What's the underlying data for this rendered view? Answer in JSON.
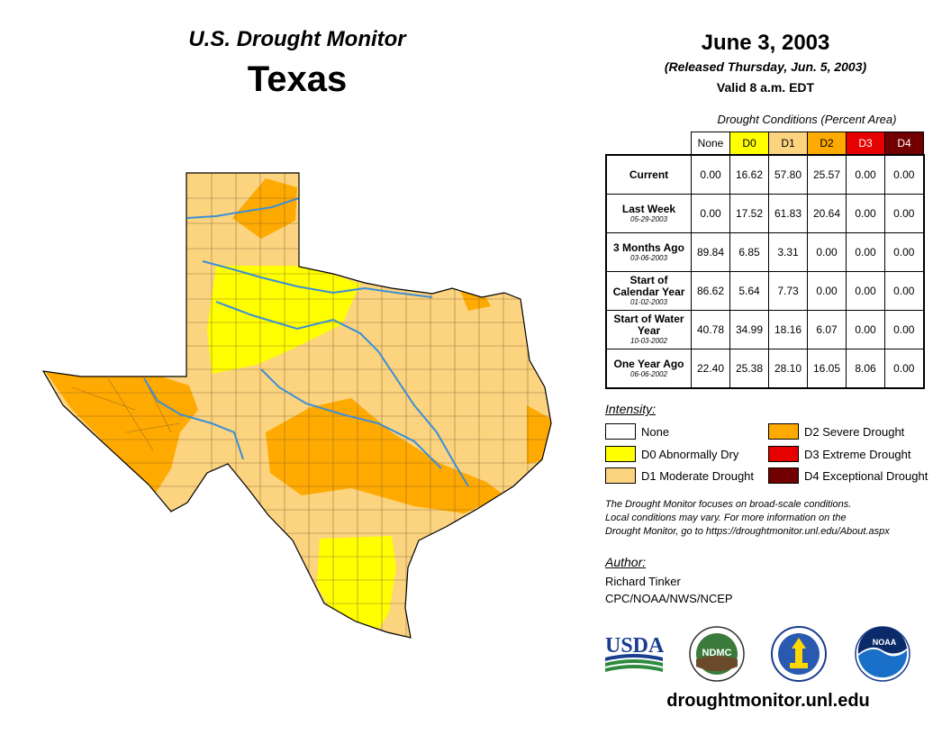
{
  "header": {
    "title": "U.S. Drought Monitor",
    "state": "Texas",
    "date": "June 3, 2003",
    "released": "(Released Thursday, Jun. 5, 2003)",
    "valid": "Valid 8 a.m. EDT"
  },
  "table": {
    "caption": "Drought Conditions (Percent Area)",
    "columns": [
      "None",
      "D0",
      "D1",
      "D2",
      "D3",
      "D4"
    ],
    "rows": [
      {
        "label": "Current",
        "date": "",
        "values": [
          "0.00",
          "16.62",
          "57.80",
          "25.57",
          "0.00",
          "0.00"
        ]
      },
      {
        "label": "Last Week",
        "date": "05-29-2003",
        "values": [
          "0.00",
          "17.52",
          "61.83",
          "20.64",
          "0.00",
          "0.00"
        ]
      },
      {
        "label": "3 Months Ago",
        "date": "03-06-2003",
        "values": [
          "89.84",
          "6.85",
          "3.31",
          "0.00",
          "0.00",
          "0.00"
        ]
      },
      {
        "label": "Start of Calendar Year",
        "date": "01-02-2003",
        "values": [
          "86.62",
          "5.64",
          "7.73",
          "0.00",
          "0.00",
          "0.00"
        ]
      },
      {
        "label": "Start of Water Year",
        "date": "10-03-2002",
        "values": [
          "40.78",
          "34.99",
          "18.16",
          "6.07",
          "0.00",
          "0.00"
        ]
      },
      {
        "label": "One Year Ago",
        "date": "06-06-2002",
        "values": [
          "22.40",
          "25.38",
          "28.10",
          "16.05",
          "8.06",
          "0.00"
        ]
      }
    ]
  },
  "legend": {
    "title": "Intensity:",
    "items": [
      {
        "label": "None",
        "color": "#ffffff"
      },
      {
        "label": "D0 Abnormally Dry",
        "color": "#ffff00"
      },
      {
        "label": "D1 Moderate Drought",
        "color": "#fcd37f"
      },
      {
        "label": "D2 Severe Drought",
        "color": "#ffaa00"
      },
      {
        "label": "D3 Extreme Drought",
        "color": "#e60000"
      },
      {
        "label": "D4 Exceptional Drought",
        "color": "#730000"
      }
    ]
  },
  "note": {
    "line1": "The Drought Monitor focuses on broad-scale conditions.",
    "line2": "Local conditions may vary. For more information on the",
    "line3": "Drought Monitor, go to https://droughtmonitor.unl.edu/About.aspx"
  },
  "author": {
    "title": "Author:",
    "name": "Richard Tinker",
    "org": "CPC/NOAA/NWS/NCEP"
  },
  "logos": {
    "usda": "USDA",
    "ndmc": "NDMC",
    "noaa": "NOAA"
  },
  "footer": {
    "site": "droughtmonitor.unl.edu"
  },
  "colors": {
    "river": "#3b8fd6",
    "county_line": "#7a5a30",
    "outline": "#000000"
  }
}
